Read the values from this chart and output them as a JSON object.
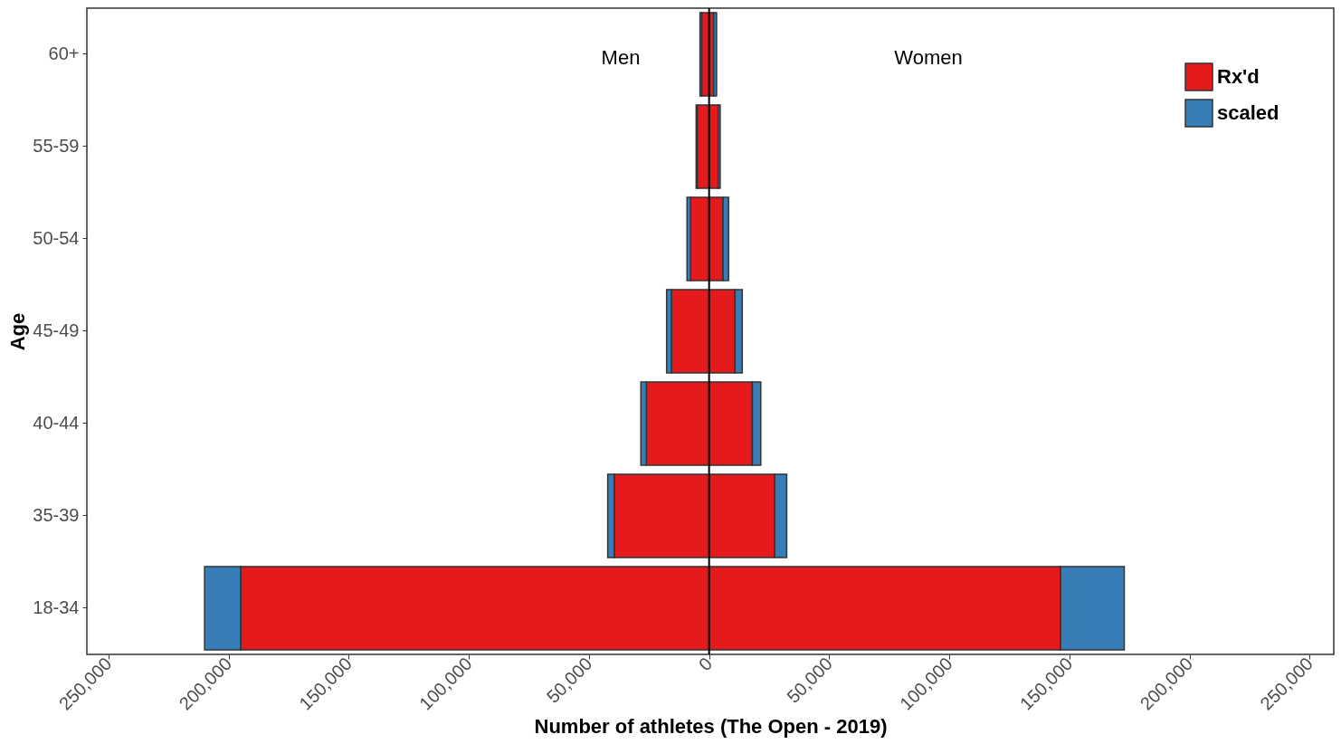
{
  "chart_data": {
    "type": "bar",
    "orientation": "horizontal",
    "stacked": true,
    "xlabel": "Number of athletes (The Open - 2019)",
    "ylabel": "Age",
    "categories": [
      "60+",
      "55-59",
      "50-54",
      "45-49",
      "40-44",
      "35-39",
      "18-34"
    ],
    "series": [
      {
        "color": "#e41a1c",
        "values": [
          -3100,
          -5000,
          -7700,
          -15700,
          -26100,
          -39500,
          -195000
        ]
      },
      {
        "color": "#377eb8",
        "values": [
          -700,
          -400,
          -1500,
          -2000,
          -2300,
          -2700,
          -15000
        ]
      },
      {
        "name": "Rx'd",
        "color": "#e41a1c",
        "values": [
          1900,
          3800,
          5800,
          10800,
          18000,
          27300,
          146300
        ]
      },
      {
        "name": "scaled",
        "color": "#377eb8",
        "values": [
          1200,
          800,
          2300,
          3000,
          3500,
          5000,
          26500
        ]
      }
    ],
    "xlim": [
      -259000,
      260000
    ],
    "xticks": [
      {
        "value": -250000,
        "label": "250,000"
      },
      {
        "value": -200000,
        "label": "200,000"
      },
      {
        "value": -150000,
        "label": "150,000"
      },
      {
        "value": -100000,
        "label": "100,000"
      },
      {
        "value": -50000,
        "label": "50,000"
      },
      0,
      {
        "value": 50000,
        "label": "50,000"
      },
      {
        "value": 100000,
        "label": "100,000"
      },
      {
        "value": 150000,
        "label": "150,000"
      },
      {
        "value": 200000,
        "label": "200,000"
      },
      {
        "value": 250000,
        "label": "250,000"
      }
    ],
    "ref_lines": [
      {
        "axis": "x",
        "value": 0,
        "color": "#000000"
      }
    ],
    "annotations": [
      "Men",
      "Women"
    ],
    "legend": "top right",
    "grid": false
  }
}
